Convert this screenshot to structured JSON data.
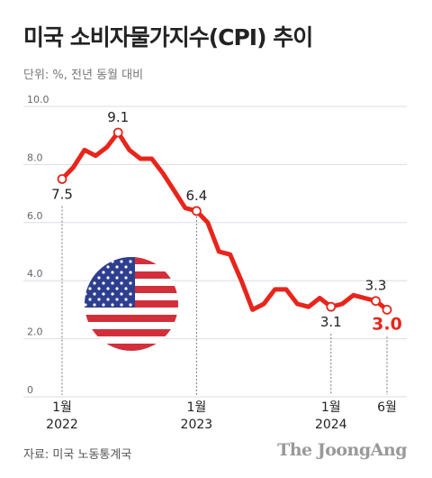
{
  "header": {
    "title": "미국 소비자물가지수(CPI) 추이",
    "unit": "단위: %, 전년 동월 대비"
  },
  "footer": {
    "source": "자료: 미국 노동통계국",
    "brand": "The JoongAng"
  },
  "colors": {
    "line": "#e8251c",
    "grid": "#d9dde6",
    "axis": "#555555",
    "highlight": "#e8251c"
  },
  "flag_icon": "us-flag-icon",
  "chart_data": {
    "type": "line",
    "ylim": [
      0,
      10
    ],
    "y_ticks": [
      "0",
      "2.0",
      "4.0",
      "6.0",
      "8.0",
      "10.0"
    ],
    "grid": true,
    "x_labels": [
      {
        "month": "1월",
        "year": "2022",
        "index": 0
      },
      {
        "month": "1월",
        "year": "2023",
        "index": 12
      },
      {
        "month": "1월",
        "year": "2024",
        "index": 24
      },
      {
        "month": "6월",
        "year": "",
        "index": 29
      }
    ],
    "series": [
      {
        "x": [
          "2022-01",
          "2022-02",
          "2022-03",
          "2022-04",
          "2022-05",
          "2022-06",
          "2022-07",
          "2022-08",
          "2022-09",
          "2022-10",
          "2022-11",
          "2022-12",
          "2023-01",
          "2023-02",
          "2023-03",
          "2023-04",
          "2023-05",
          "2023-06",
          "2023-07",
          "2023-08",
          "2023-09",
          "2023-10",
          "2023-11",
          "2023-12",
          "2024-01",
          "2024-02",
          "2024-03",
          "2024-04",
          "2024-05",
          "2024-06"
        ],
        "values": [
          7.5,
          7.9,
          8.5,
          8.3,
          8.6,
          9.1,
          8.5,
          8.2,
          8.2,
          7.7,
          7.1,
          6.5,
          6.4,
          6.0,
          5.0,
          4.9,
          4.0,
          3.0,
          3.2,
          3.7,
          3.7,
          3.2,
          3.1,
          3.4,
          3.1,
          3.2,
          3.5,
          3.4,
          3.3,
          3.0
        ]
      }
    ],
    "annotations": [
      {
        "index": 0,
        "label": "7.5",
        "pos": "below"
      },
      {
        "index": 5,
        "label": "9.1",
        "pos": "above"
      },
      {
        "index": 12,
        "label": "6.4",
        "pos": "above"
      },
      {
        "index": 24,
        "label": "3.1",
        "pos": "below"
      },
      {
        "index": 28,
        "label": "3.3",
        "pos": "above"
      },
      {
        "index": 29,
        "label": "3.0",
        "pos": "below",
        "highlight": true
      }
    ]
  }
}
